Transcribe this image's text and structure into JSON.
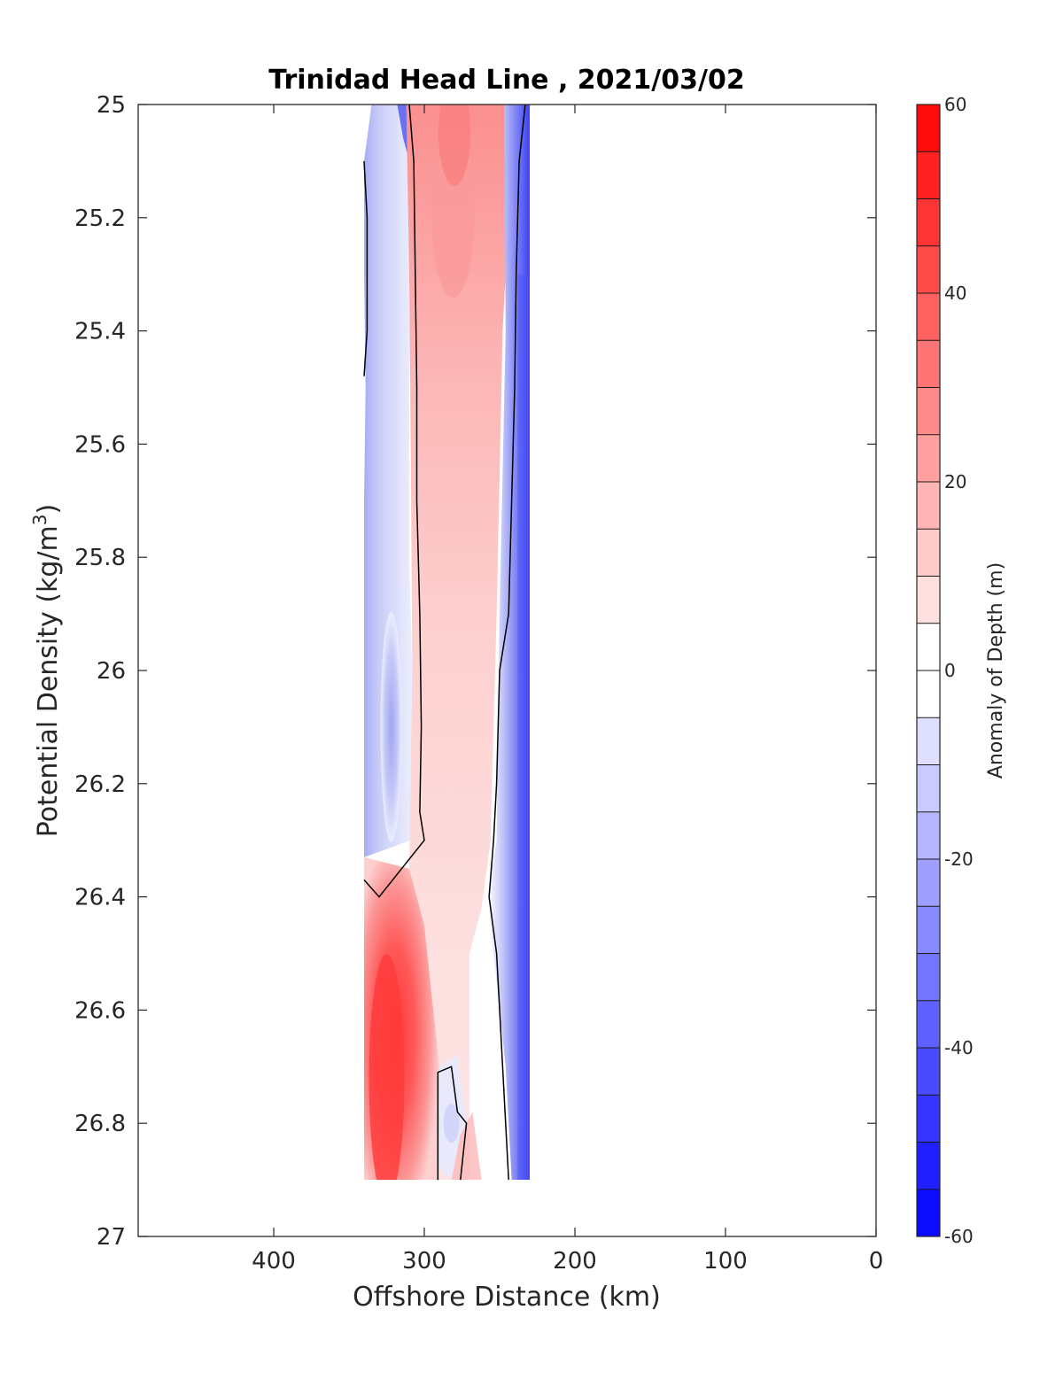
{
  "chart_data": {
    "type": "heatmap",
    "subtype": "filled-contour",
    "title": "Trinidad Head Line , 2021/03/02",
    "xlabel": "Offshore Distance (km)",
    "ylabel": {
      "main": "Potential Density (kg/m",
      "sup": "3",
      "end": ")"
    },
    "xlim": [
      490,
      0
    ],
    "x_reversed": true,
    "ylim": [
      27,
      25
    ],
    "y_reversed": true,
    "x_ticks": [
      400,
      300,
      200,
      100,
      0
    ],
    "y_ticks": [
      25,
      25.2,
      25.4,
      25.6,
      25.8,
      26,
      26.2,
      26.4,
      26.6,
      26.8,
      27
    ],
    "y_tick_labels": [
      "25",
      "25.2",
      "25.4",
      "25.6",
      "25.8",
      "26",
      "26.2",
      "26.4",
      "26.6",
      "26.8",
      "27"
    ],
    "data_extent": {
      "x": [
        230,
        340
      ],
      "y": [
        25,
        26.9
      ]
    },
    "colorbar": {
      "label": "Anomaly of Depth (m)",
      "min": -60,
      "max": 60,
      "step": 5,
      "ticks": [
        60,
        40,
        20,
        0,
        -20,
        -40,
        -60
      ],
      "colors": {
        "low": "#0000ff",
        "mid": "#ffffff",
        "high": "#ff0000"
      }
    },
    "zero_contour": "black",
    "regions": [
      {
        "name": "offshore-negative-band",
        "x": [
          310,
          340
        ],
        "y": [
          25,
          26.35
        ],
        "anomaly_range": [
          -20,
          0
        ]
      },
      {
        "name": "central-positive-band",
        "x": [
          260,
          310
        ],
        "y": [
          25,
          26.4
        ],
        "anomaly_range": [
          5,
          30
        ]
      },
      {
        "name": "deep-offshore-positive-core",
        "x": [
          300,
          340
        ],
        "y": [
          26.3,
          26.9
        ],
        "anomaly_peak": 50
      },
      {
        "name": "inshore-negative-band",
        "x": [
          230,
          260
        ],
        "y": [
          25.1,
          26.9
        ],
        "anomaly_peak": -40
      },
      {
        "name": "deep-central-negative-pocket",
        "x": [
          270,
          290
        ],
        "y": [
          26.7,
          26.9
        ],
        "anomaly_range": [
          -10,
          0
        ]
      }
    ]
  }
}
